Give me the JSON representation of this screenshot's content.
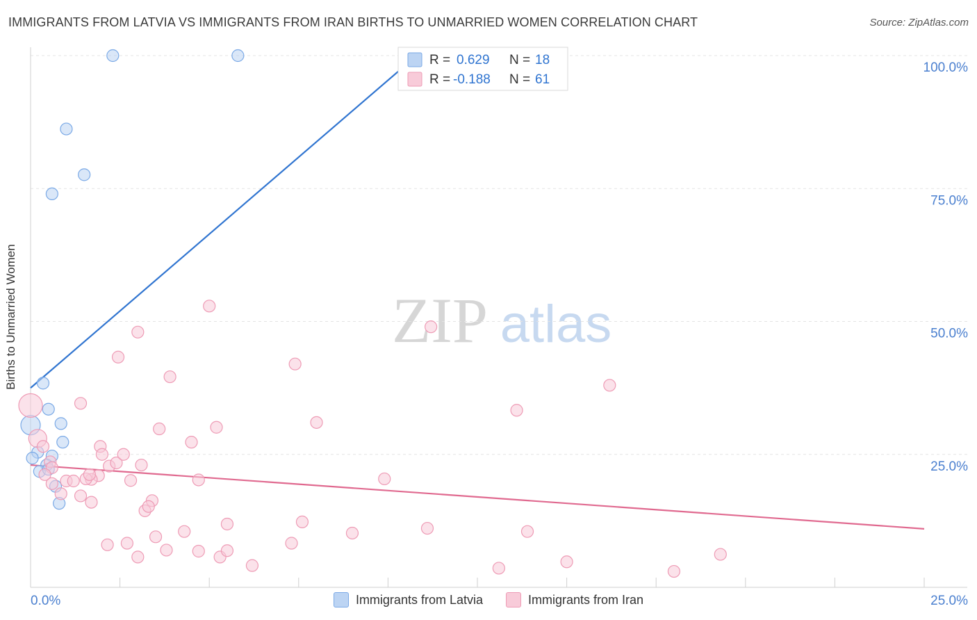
{
  "header": {
    "title": "IMMIGRANTS FROM LATVIA VS IMMIGRANTS FROM IRAN BIRTHS TO UNMARRIED WOMEN CORRELATION CHART",
    "source": "Source: ZipAtlas.com"
  },
  "watermark": {
    "zip": "ZIP",
    "atlas": "atlas"
  },
  "chart_data": {
    "type": "scatter",
    "title": "IMMIGRANTS FROM LATVIA VS IMMIGRANTS FROM IRAN BIRTHS TO UNMARRIED WOMEN CORRELATION CHART",
    "xlabel": "",
    "ylabel": "Births to Unmarried Women",
    "xlim": [
      0,
      25
    ],
    "ylim": [
      0,
      100
    ],
    "x_tick_labels": [
      "0.0%",
      "25.0%"
    ],
    "y_ticks": [
      25,
      50,
      75,
      100
    ],
    "y_tick_labels": [
      "25.0%",
      "50.0%",
      "75.0%",
      "100.0%"
    ],
    "grid": true,
    "legend_position": "top-center",
    "stats_legend": [
      {
        "r_label": "R =",
        "r_value": "0.629",
        "n_label": "N =",
        "n_value": "18"
      },
      {
        "r_label": "R =",
        "r_value": "-0.188",
        "n_label": "N =",
        "n_value": "61"
      }
    ],
    "series": [
      {
        "name": "Immigrants from Latvia",
        "color": "#7aa9e6",
        "fill": "#bcd4f3",
        "trend_color": "#2f74d0",
        "trend": {
          "x": [
            0.0,
            10.8
          ],
          "y": [
            37.5,
            100.0
          ]
        },
        "points": [
          {
            "x": 2.3,
            "y": 100.0
          },
          {
            "x": 5.8,
            "y": 100.0
          },
          {
            "x": 1.0,
            "y": 86.2
          },
          {
            "x": 1.5,
            "y": 77.6
          },
          {
            "x": 0.6,
            "y": 74.0
          },
          {
            "x": 0.35,
            "y": 38.4
          },
          {
            "x": 0.5,
            "y": 33.5
          },
          {
            "x": 0.85,
            "y": 30.8
          },
          {
            "x": 0.0,
            "y": 30.5,
            "s": 14
          },
          {
            "x": 0.9,
            "y": 27.3
          },
          {
            "x": 0.2,
            "y": 25.4
          },
          {
            "x": 0.6,
            "y": 24.7
          },
          {
            "x": 0.05,
            "y": 24.3
          },
          {
            "x": 0.45,
            "y": 23.0
          },
          {
            "x": 0.25,
            "y": 21.8
          },
          {
            "x": 0.7,
            "y": 19.0
          },
          {
            "x": 0.8,
            "y": 15.8
          },
          {
            "x": 0.5,
            "y": 22.2
          }
        ]
      },
      {
        "name": "Immigrants from Iran",
        "color": "#ee9bb5",
        "fill": "#f8cbd9",
        "trend_color": "#e0698f",
        "trend": {
          "x": [
            0.0,
            25.0
          ],
          "y": [
            23.0,
            11.0
          ]
        },
        "points": [
          {
            "x": 0.0,
            "y": 34.2,
            "s": 17
          },
          {
            "x": 0.2,
            "y": 28.0,
            "s": 13
          },
          {
            "x": 0.35,
            "y": 26.5
          },
          {
            "x": 0.55,
            "y": 23.6
          },
          {
            "x": 0.6,
            "y": 22.5
          },
          {
            "x": 0.4,
            "y": 21.2
          },
          {
            "x": 0.6,
            "y": 19.5
          },
          {
            "x": 0.85,
            "y": 17.6
          },
          {
            "x": 1.0,
            "y": 20.0
          },
          {
            "x": 1.2,
            "y": 20.0
          },
          {
            "x": 1.4,
            "y": 17.2
          },
          {
            "x": 1.7,
            "y": 16.0
          },
          {
            "x": 1.4,
            "y": 34.6
          },
          {
            "x": 1.9,
            "y": 21.0
          },
          {
            "x": 1.7,
            "y": 20.3
          },
          {
            "x": 1.55,
            "y": 20.4
          },
          {
            "x": 1.95,
            "y": 26.5
          },
          {
            "x": 2.0,
            "y": 25.0
          },
          {
            "x": 2.2,
            "y": 22.8
          },
          {
            "x": 2.4,
            "y": 23.4
          },
          {
            "x": 2.6,
            "y": 25.0
          },
          {
            "x": 2.8,
            "y": 20.1
          },
          {
            "x": 3.0,
            "y": 48.0
          },
          {
            "x": 2.45,
            "y": 43.3
          },
          {
            "x": 3.1,
            "y": 23.0
          },
          {
            "x": 3.2,
            "y": 14.4
          },
          {
            "x": 3.4,
            "y": 16.3
          },
          {
            "x": 3.3,
            "y": 15.2
          },
          {
            "x": 3.9,
            "y": 39.6
          },
          {
            "x": 3.6,
            "y": 29.8
          },
          {
            "x": 4.5,
            "y": 27.3
          },
          {
            "x": 4.7,
            "y": 20.2
          },
          {
            "x": 5.0,
            "y": 52.9
          },
          {
            "x": 5.2,
            "y": 30.1
          },
          {
            "x": 5.5,
            "y": 11.9
          },
          {
            "x": 2.15,
            "y": 8.0
          },
          {
            "x": 2.7,
            "y": 8.3
          },
          {
            "x": 3.0,
            "y": 5.7
          },
          {
            "x": 3.5,
            "y": 9.5
          },
          {
            "x": 3.8,
            "y": 7.0
          },
          {
            "x": 4.3,
            "y": 10.5
          },
          {
            "x": 4.7,
            "y": 6.8
          },
          {
            "x": 5.3,
            "y": 5.7
          },
          {
            "x": 5.5,
            "y": 6.9
          },
          {
            "x": 6.2,
            "y": 4.1
          },
          {
            "x": 7.3,
            "y": 8.3
          },
          {
            "x": 7.6,
            "y": 12.3
          },
          {
            "x": 7.4,
            "y": 42.0
          },
          {
            "x": 8.0,
            "y": 31.0
          },
          {
            "x": 9.0,
            "y": 10.2
          },
          {
            "x": 9.9,
            "y": 20.4
          },
          {
            "x": 11.2,
            "y": 49.0
          },
          {
            "x": 11.1,
            "y": 11.1
          },
          {
            "x": 13.1,
            "y": 3.6
          },
          {
            "x": 13.6,
            "y": 33.3
          },
          {
            "x": 13.9,
            "y": 10.5
          },
          {
            "x": 15.0,
            "y": 4.8
          },
          {
            "x": 16.2,
            "y": 38.0
          },
          {
            "x": 18.0,
            "y": 3.0
          },
          {
            "x": 19.3,
            "y": 6.2
          },
          {
            "x": 1.65,
            "y": 21.2
          }
        ]
      }
    ]
  }
}
